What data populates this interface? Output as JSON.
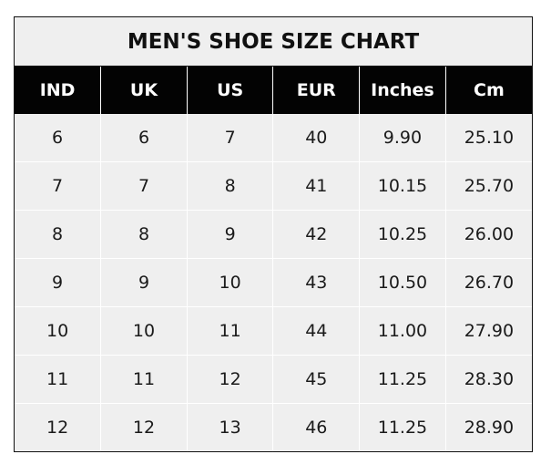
{
  "title": "MEN'S SHOE SIZE CHART",
  "headers": [
    "IND",
    "UK",
    "US",
    "EUR",
    "Inches",
    "Cm"
  ],
  "rows": [
    [
      "6",
      "6",
      "7",
      "40",
      "9.90",
      "25.10"
    ],
    [
      "7",
      "7",
      "8",
      "41",
      "10.15",
      "25.70"
    ],
    [
      "8",
      "8",
      "9",
      "42",
      "10.25",
      "26.00"
    ],
    [
      "9",
      "9",
      "10",
      "43",
      "10.50",
      "26.70"
    ],
    [
      "10",
      "10",
      "11",
      "44",
      "11.00",
      "27.90"
    ],
    [
      "11",
      "11",
      "12",
      "45",
      "11.25",
      "28.30"
    ],
    [
      "12",
      "12",
      "13",
      "46",
      "11.25",
      "28.90"
    ]
  ],
  "colors": {
    "header_bg": "#030303",
    "cell_bg": "#efefef",
    "header_text": "#ffffff"
  }
}
